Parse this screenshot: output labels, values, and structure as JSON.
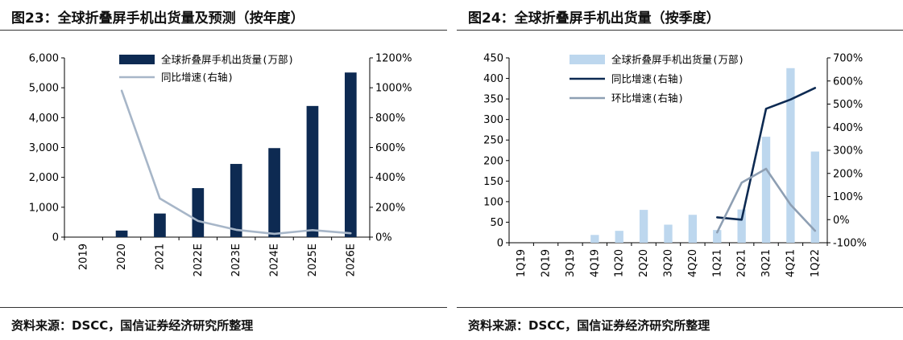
{
  "left": {
    "title": "图23：全球折叠屏手机出货量及预测（按年度）",
    "source": "资料来源：DSCC，国信证券经济研究所整理",
    "chart_data": {
      "type": "bar",
      "categories": [
        "2019",
        "2020",
        "2021",
        "2022E",
        "2023E",
        "2024E",
        "2025E",
        "2026E"
      ],
      "series": [
        {
          "name": "全球折叠屏手机出货量(万部)",
          "type": "bar",
          "axis": "left",
          "color": "#0d2a52",
          "values": [
            0,
            220,
            790,
            1640,
            2450,
            2980,
            4390,
            5510
          ]
        },
        {
          "name": "同比增速(右轴)",
          "type": "line",
          "axis": "right",
          "color": "#a7b6c8",
          "values": [
            null,
            980,
            259,
            108,
            49,
            22,
            47,
            26
          ]
        }
      ],
      "y_left": {
        "min": 0,
        "max": 6000,
        "ticks": [
          "0",
          "1,000",
          "2,000",
          "3,000",
          "4,000",
          "5,000",
          "6,000"
        ]
      },
      "y_right": {
        "min": 0,
        "max": 1200,
        "ticks": [
          "0%",
          "200%",
          "400%",
          "600%",
          "800%",
          "1000%",
          "1200%"
        ]
      },
      "legend_position": "top-center",
      "grid": false
    }
  },
  "right": {
    "title": "图24：全球折叠屏手机出货量（按季度）",
    "source": "资料来源：DSCC，国信证券经济研究所整理",
    "chart_data": {
      "type": "bar",
      "categories": [
        "1Q19",
        "2Q19",
        "3Q19",
        "4Q19",
        "1Q20",
        "2Q20",
        "3Q20",
        "4Q20",
        "1Q21",
        "2Q21",
        "3Q21",
        "4Q21",
        "1Q22"
      ],
      "series": [
        {
          "name": "全球折叠屏手机出货量(万部)",
          "type": "bar",
          "axis": "left",
          "color": "#bdd7ee",
          "values": [
            0,
            0,
            0,
            19,
            29,
            80,
            44,
            68,
            31,
            81,
            258,
            425,
            222
          ]
        },
        {
          "name": "同比增速(右轴)",
          "type": "line",
          "axis": "right",
          "color": "#0d2a52",
          "values": [
            null,
            null,
            null,
            null,
            null,
            null,
            null,
            null,
            10,
            0,
            480,
            520,
            570
          ]
        },
        {
          "name": "环比增速(右轴)",
          "type": "line",
          "axis": "right",
          "color": "#8e9fb3",
          "values": [
            null,
            null,
            null,
            null,
            null,
            null,
            null,
            null,
            -55,
            160,
            220,
            65,
            -48
          ]
        }
      ],
      "y_left": {
        "min": 0,
        "max": 450,
        "ticks": [
          "0",
          "50",
          "100",
          "150",
          "200",
          "250",
          "300",
          "350",
          "400",
          "450"
        ]
      },
      "y_right": {
        "min": -100,
        "max": 700,
        "ticks": [
          "-100%",
          "0%",
          "100%",
          "200%",
          "300%",
          "400%",
          "500%",
          "600%",
          "700%"
        ]
      },
      "legend_position": "top-center",
      "grid": false
    }
  }
}
